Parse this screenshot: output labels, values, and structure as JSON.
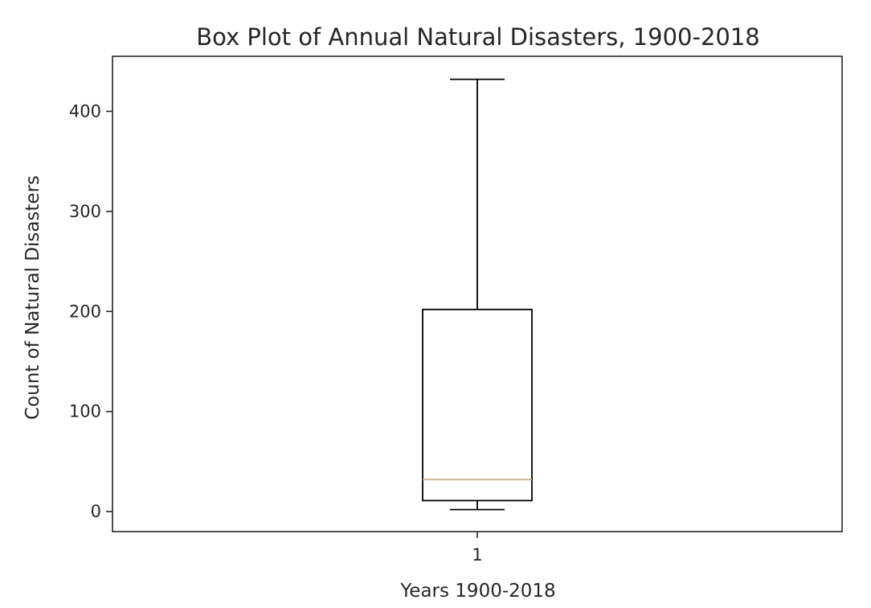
{
  "chart_data": {
    "type": "box",
    "title": "Box Plot of Annual Natural Disasters, 1900-2018",
    "xlabel": "Years 1900-2018",
    "ylabel": "Count of Natural Disasters",
    "categories": [
      "1"
    ],
    "ylim": [
      -20,
      455
    ],
    "yticks": [
      0,
      100,
      200,
      300,
      400
    ],
    "ytick_labels": [
      "0",
      "100",
      "200",
      "300",
      "400"
    ],
    "boxes": [
      {
        "category": "1",
        "whisker_low": 2,
        "q1": 11,
        "median": 32,
        "q3": 202,
        "whisker_high": 432
      }
    ],
    "grid": false,
    "colors": {
      "box": "#000000",
      "median": "#c8ad8f",
      "axes": "#262626"
    }
  }
}
